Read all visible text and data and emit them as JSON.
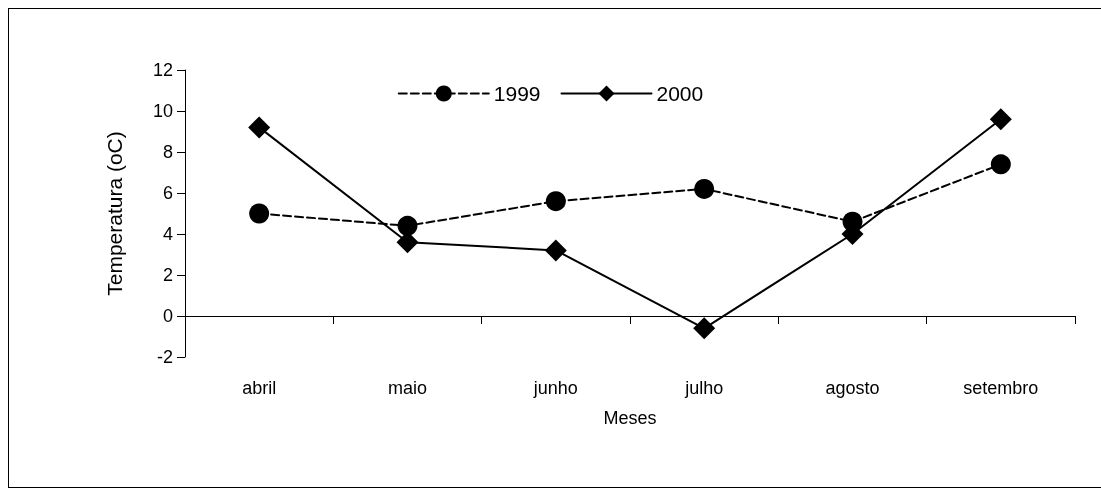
{
  "chart_data": {
    "type": "line",
    "xlabel": "Meses",
    "ylabel": "Temperatura (oC)",
    "categories": [
      "abril",
      "maio",
      "junho",
      "julho",
      "agosto",
      "setembro"
    ],
    "series": [
      {
        "name": "1999",
        "color": "#000000",
        "marker": "circle",
        "line_style": "dashed",
        "values": [
          5.0,
          4.4,
          5.6,
          6.2,
          4.6,
          7.4
        ]
      },
      {
        "name": "2000",
        "color": "#000000",
        "marker": "diamond",
        "line_style": "solid",
        "values": [
          9.2,
          3.6,
          3.2,
          -0.6,
          4.0,
          9.6
        ]
      }
    ],
    "ylim": [
      -2,
      12
    ],
    "yticks": [
      -2,
      0,
      2,
      4,
      6,
      8,
      10,
      12
    ],
    "legend": "top"
  }
}
